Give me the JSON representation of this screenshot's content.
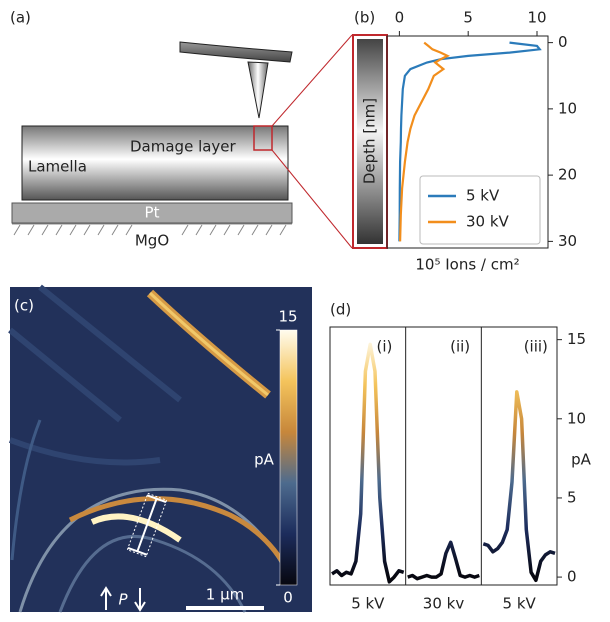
{
  "panel_a": {
    "label": "(a)",
    "lamella": "Lamella",
    "damage_layer": "Damage layer",
    "pt": "Pt",
    "mgo": "MgO"
  },
  "panel_c": {
    "label": "(c)",
    "colorbar_label": "pA",
    "colorbar_lim": [
      0,
      15
    ],
    "colorbar_ticks": [
      0,
      15
    ],
    "scale_bar": "1 µm",
    "polarization": "P"
  },
  "colormap": [
    "#07070f",
    "#1c2c5c",
    "#4d6b8e",
    "#c7873b",
    "#f4c45c",
    "#fffcee"
  ],
  "chart_data": [
    {
      "type": "line",
      "panel_label": "(b)",
      "y_label": "Depth [nm]",
      "x_label": "10⁵ Ions / cm²",
      "y": [
        0,
        0.5,
        1,
        1.5,
        2,
        2.5,
        3,
        4,
        5,
        7,
        9,
        11,
        13,
        15,
        18,
        22,
        26,
        30
      ],
      "xlim": [
        -0.9,
        10.8
      ],
      "xticks": [
        0,
        5,
        10
      ],
      "ylim": [
        -1,
        31
      ],
      "yticks": [
        0,
        10,
        20,
        30
      ],
      "legend": "lower right",
      "series": [
        {
          "name": "5 kV",
          "color": "#2b7bba",
          "values": [
            8,
            10,
            10.2,
            8,
            5,
            3,
            2,
            0.8,
            0.4,
            0.25,
            0.2,
            0.15,
            0.12,
            0.1,
            0.05,
            0.03,
            0.02,
            0
          ]
        },
        {
          "name": "30 kV",
          "color": "#f28e1c",
          "values": [
            1.8,
            2.1,
            2.4,
            3,
            3.5,
            3,
            2.6,
            3.2,
            2.5,
            2.1,
            1.6,
            1.1,
            0.8,
            0.6,
            0.4,
            0.2,
            0.1,
            0.05
          ]
        }
      ]
    },
    {
      "type": "profiles",
      "panel_label": "(d)",
      "y_label": "pA",
      "ylim": [
        -0.5,
        15.8
      ],
      "yticks": [
        0,
        5,
        10,
        15
      ],
      "panels": [
        {
          "name": "(i)",
          "label": "5 kV",
          "values": [
            0.2,
            0.4,
            0.1,
            0.3,
            0.2,
            1,
            4,
            13,
            14.7,
            13,
            5,
            1,
            -0.3,
            0,
            0.4,
            0.3
          ]
        },
        {
          "name": "(ii)",
          "label": "30 kv",
          "values": [
            0,
            0.1,
            -0.1,
            0,
            0.1,
            0,
            0,
            0.2,
            1.5,
            2.2,
            1.2,
            0.1,
            0,
            0.1,
            0,
            0.1
          ]
        },
        {
          "name": "(iii)",
          "label": "5 kV",
          "values": [
            2.1,
            2.0,
            1.6,
            1.8,
            2.2,
            3,
            6,
            11.7,
            10,
            3,
            0.3,
            -0.2,
            1,
            1.4,
            1.6,
            1.5
          ]
        }
      ]
    }
  ]
}
